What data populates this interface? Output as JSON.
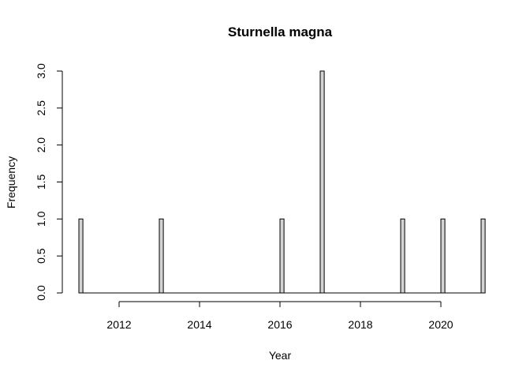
{
  "chart_data": {
    "type": "bar",
    "title": "Sturnella magna",
    "xlabel": "Year",
    "ylabel": "Frequency",
    "xlim": [
      2011,
      2021
    ],
    "ylim": [
      0,
      3
    ],
    "x_ticks": [
      2012,
      2014,
      2016,
      2018,
      2020
    ],
    "y_ticks": [
      "0.0",
      "0.5",
      "1.0",
      "1.5",
      "2.0",
      "2.5",
      "3.0"
    ],
    "bin_width": 0.1,
    "bars": [
      {
        "year": 2011,
        "value": 1
      },
      {
        "year": 2013,
        "value": 1
      },
      {
        "year": 2016,
        "value": 1
      },
      {
        "year": 2017,
        "value": 3
      },
      {
        "year": 2019,
        "value": 1
      },
      {
        "year": 2020,
        "value": 1
      },
      {
        "year": 2021,
        "value": 1
      }
    ],
    "bar_color": "#d3d3d3",
    "grid": false,
    "legend": "none"
  }
}
